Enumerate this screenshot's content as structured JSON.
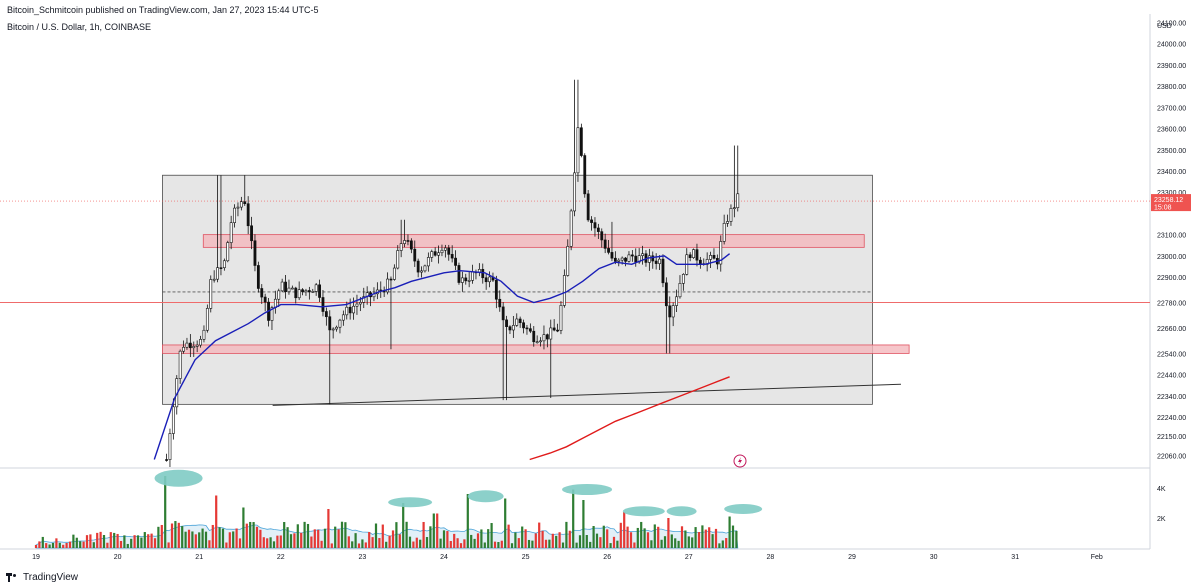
{
  "header": {
    "publish_line": "Bitcoin_Schmitcoin published on TradingView.com, Jan 27, 2023 15:44 UTC-5",
    "symbol_line": "Bitcoin / U.S. Dollar, 1h, COINBASE"
  },
  "footer": {
    "brand": "TradingView"
  },
  "colors": {
    "up": "#2e7d32",
    "down": "#e53935",
    "ma_fast": "#1a1fb8",
    "ma_slow": "#e01b1b",
    "range_box": "#e6e6e6",
    "zone_fill": "#f4b8bd",
    "zone_border": "#e05260",
    "price_tag": "#ef5350",
    "volume_blob": "#7fcbc4"
  },
  "icons": [
    "tradingview-logo-icon",
    "lightning-icon"
  ],
  "chart_data": [
    {
      "type": "candlestick",
      "title": "Bitcoin / U.S. Dollar, 1h, COINBASE",
      "currency": "USD",
      "y_ticks": [
        "24100.00",
        "24000.00",
        "23900.00",
        "23800.00",
        "23700.00",
        "23600.00",
        "23500.00",
        "23400.00",
        "23300.00",
        "23100.00",
        "23000.00",
        "22900.00",
        "22780.00",
        "22660.00",
        "22540.00",
        "22440.00",
        "22340.00",
        "22240.00",
        "22150.00",
        "22060.00"
      ],
      "x_ticks": [
        "19",
        "20",
        "21",
        "22",
        "23",
        "24",
        "25",
        "26",
        "27",
        "28",
        "29",
        "30",
        "31",
        "Feb"
      ],
      "last_price": "23258.12",
      "countdown": "15:08",
      "moving_averages": [
        {
          "color": "#1a1fb8",
          "points": [
            [
              20.45,
              22040
            ],
            [
              20.7,
              22330
            ],
            [
              20.95,
              22510
            ],
            [
              21.2,
              22600
            ],
            [
              21.4,
              22640
            ],
            [
              21.6,
              22680
            ],
            [
              21.8,
              22730
            ],
            [
              22.0,
              22770
            ],
            [
              22.2,
              22770
            ],
            [
              22.5,
              22760
            ],
            [
              22.8,
              22770
            ],
            [
              23.0,
              22800
            ],
            [
              23.2,
              22830
            ],
            [
              23.4,
              22850
            ],
            [
              23.6,
              22880
            ],
            [
              23.8,
              22900
            ],
            [
              24.0,
              22920
            ],
            [
              24.2,
              22930
            ],
            [
              24.5,
              22920
            ],
            [
              24.7,
              22880
            ],
            [
              24.9,
              22810
            ],
            [
              25.1,
              22780
            ],
            [
              25.3,
              22800
            ],
            [
              25.5,
              22830
            ],
            [
              25.7,
              22880
            ],
            [
              25.9,
              22940
            ],
            [
              26.1,
              22970
            ],
            [
              26.3,
              22960
            ],
            [
              26.5,
              22990
            ],
            [
              26.7,
              23000
            ],
            [
              26.85,
              22960
            ],
            [
              27.0,
              22960
            ],
            [
              27.2,
              22960
            ],
            [
              27.4,
              22980
            ],
            [
              27.5,
              23010
            ]
          ]
        },
        {
          "color": "#e01b1b",
          "points": [
            [
              25.05,
              22040
            ],
            [
              25.3,
              22070
            ],
            [
              25.5,
              22100
            ],
            [
              25.7,
              22140
            ],
            [
              25.9,
              22180
            ],
            [
              26.1,
              22220
            ],
            [
              26.3,
              22250
            ],
            [
              26.5,
              22280
            ],
            [
              26.7,
              22310
            ],
            [
              26.9,
              22340
            ],
            [
              27.1,
              22370
            ],
            [
              27.3,
              22400
            ],
            [
              27.5,
              22430
            ]
          ]
        }
      ],
      "annotations": {
        "range_box": {
          "x": [
            20.55,
            29.25
          ],
          "y": [
            22300,
            23380
          ]
        },
        "resistance_zone": {
          "x": [
            21.05,
            29.15
          ],
          "y": [
            23040,
            23100
          ]
        },
        "support_zone": {
          "x": [
            20.55,
            29.7
          ],
          "y": [
            22540,
            22580
          ]
        },
        "rising_trendline": [
          [
            21.9,
            22295
          ],
          [
            29.6,
            22395
          ]
        ],
        "horizontal_line": 22780,
        "dashed_line": 22830
      },
      "volume_ticks": [
        "4K",
        "2K"
      ]
    }
  ]
}
